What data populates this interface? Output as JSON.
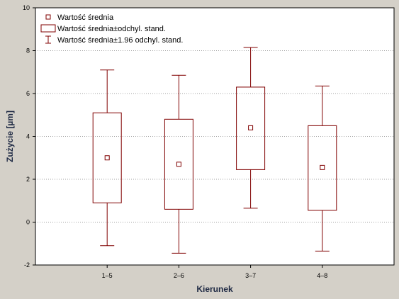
{
  "chart_data": {
    "type": "box",
    "title": "",
    "xlabel": "Kierunek",
    "ylabel": "Zużycie [µm]",
    "ylim": [
      -2,
      10
    ],
    "yticks": [
      -2,
      0,
      2,
      4,
      6,
      8,
      10
    ],
    "grid": "horizontal dotted",
    "legend_position": "top-left",
    "categories": [
      "1–5",
      "2–6",
      "3–7",
      "4–8"
    ],
    "mean": [
      3.0,
      2.7,
      4.4,
      2.55
    ],
    "box_low": [
      0.9,
      0.6,
      2.45,
      0.55
    ],
    "box_high": [
      5.1,
      4.8,
      6.3,
      4.5
    ],
    "whisker_low": [
      -1.1,
      -1.45,
      0.65,
      -1.35
    ],
    "whisker_high": [
      7.1,
      6.85,
      8.15,
      6.35
    ],
    "legend": [
      {
        "symbol": "mean",
        "label": "Wartość średnia"
      },
      {
        "symbol": "box",
        "label": "Wartość średnia±odchyl. stand."
      },
      {
        "symbol": "whisker",
        "label": "Wartość średnia±1.96 odchyl. stand."
      }
    ],
    "colors": {
      "series": "#800000",
      "plot_bg": "#ffffff",
      "frame_bg": "#d4d0c8",
      "grid": "#a0a0a0"
    }
  }
}
